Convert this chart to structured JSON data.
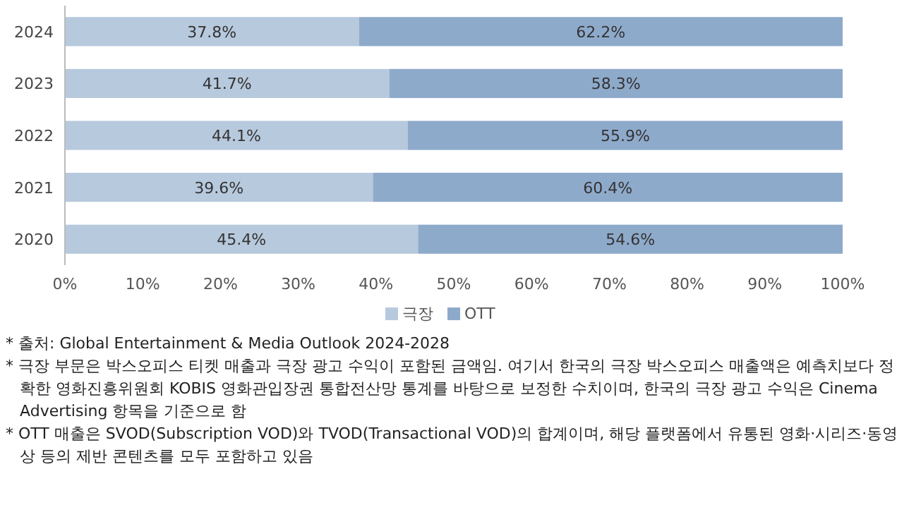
{
  "chart_data": {
    "type": "bar",
    "orientation": "horizontal",
    "stacked": true,
    "categories": [
      "2024",
      "2023",
      "2022",
      "2021",
      "2020"
    ],
    "series": [
      {
        "name": "극장",
        "color": "#b7c9dd",
        "values": [
          37.8,
          41.7,
          44.1,
          39.6,
          45.4
        ],
        "value_labels": [
          "37.8%",
          "41.7%",
          "44.1%",
          "39.6%",
          "45.4%"
        ]
      },
      {
        "name": "OTT",
        "color": "#8eaacb",
        "values": [
          62.2,
          58.3,
          55.9,
          60.4,
          54.6
        ],
        "value_labels": [
          "62.2%",
          "58.3%",
          "55.9%",
          "60.4%",
          "54.6%"
        ]
      }
    ],
    "xlim": [
      0,
      100
    ],
    "xticks": [
      {
        "value": 0,
        "label": "0%"
      },
      {
        "value": 10,
        "label": "10%"
      },
      {
        "value": 20,
        "label": "20%"
      },
      {
        "value": 30,
        "label": "30%"
      },
      {
        "value": 40,
        "label": "40%"
      },
      {
        "value": 50,
        "label": "50%"
      },
      {
        "value": 60,
        "label": "60%"
      },
      {
        "value": 70,
        "label": "70%"
      },
      {
        "value": 80,
        "label": "80%"
      },
      {
        "value": 90,
        "label": "90%"
      },
      {
        "value": 100,
        "label": "100%"
      }
    ],
    "legend": "bottom",
    "annotations": [
      "* 출처: Global Entertainment & Media Outlook 2024-2028",
      "* 극장 부문은 박스오피스 티켓 매출과 극장 광고 수익이 포함된 금액임. 여기서 한국의 극장 박스오피스 매출액은 예측치보다 정확한 영화진흥위원회 KOBIS 영화관입장권 통합전산망 통계를 바탕으로 보정한 수치이며, 한국의 극장 광고 수익은 Cinema Advertising 항목을 기준으로 함",
      "* OTT 매출은 SVOD(Subscription VOD)와 TVOD(Transactional VOD)의 합계이며, 해당 플랫폼에서 유통된 영화·시리즈·동영상 등의 제반 콘텐츠를 모두 포함하고 있음"
    ]
  }
}
